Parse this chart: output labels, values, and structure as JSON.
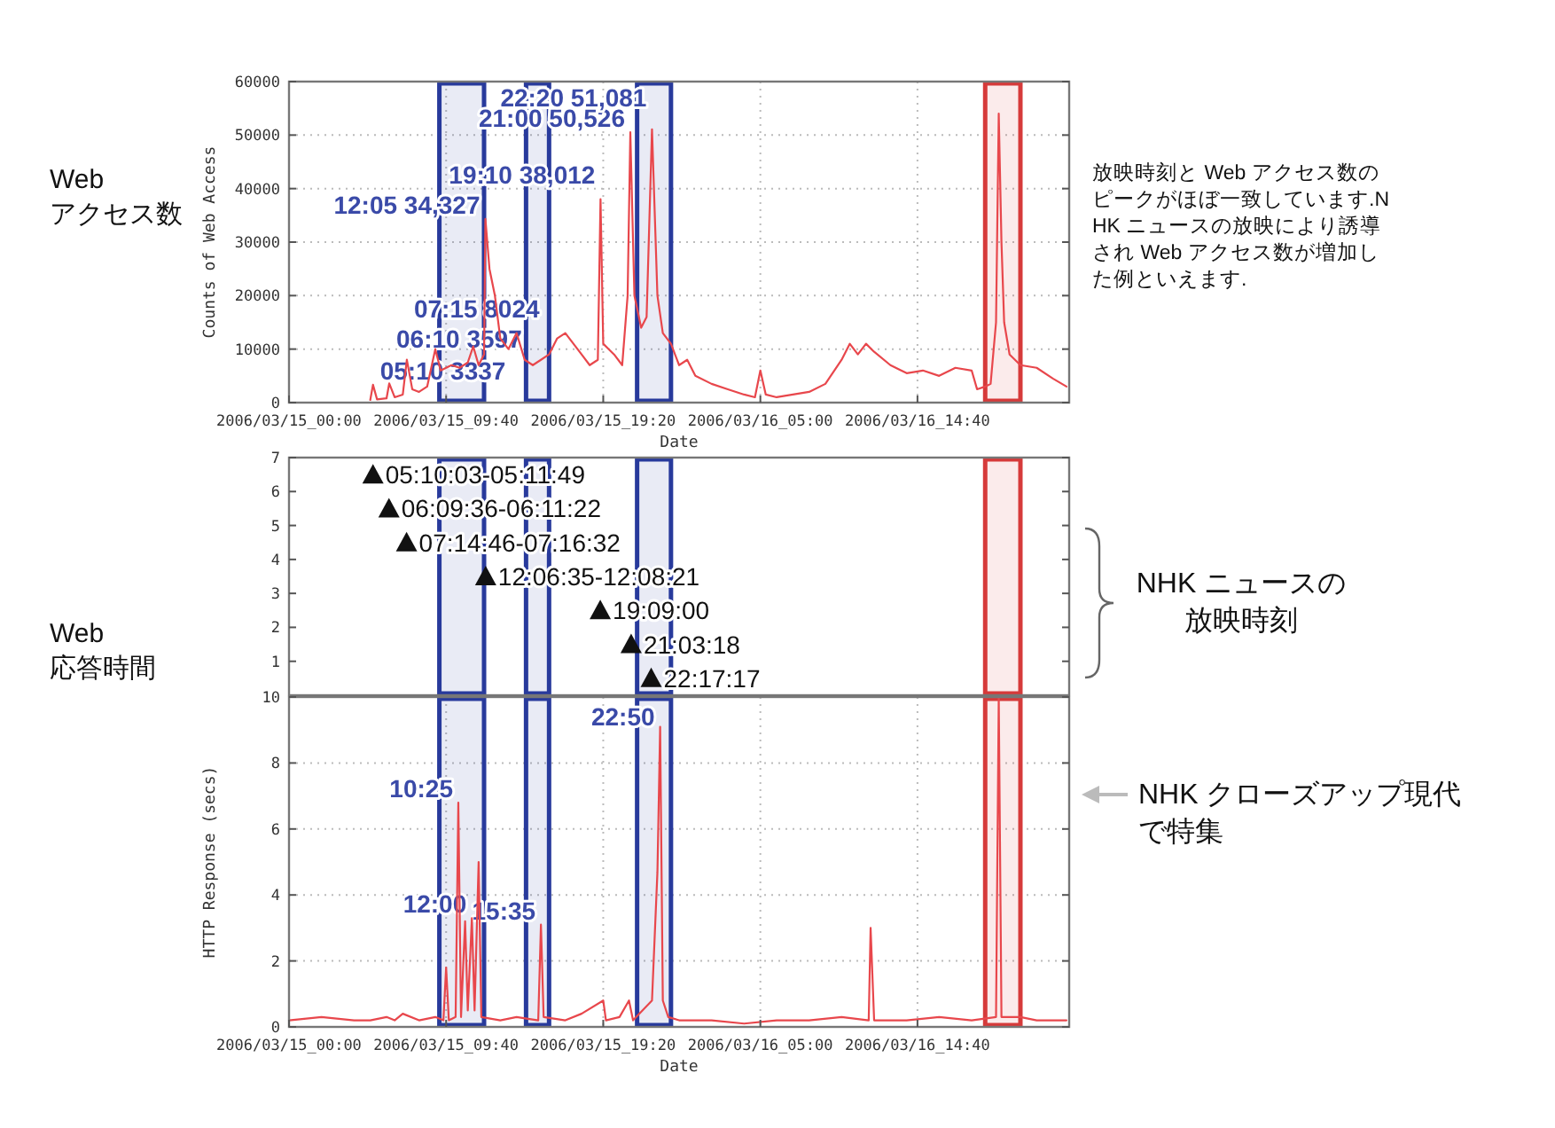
{
  "chart_data": [
    {
      "type": "line",
      "xlabel": "Date",
      "ylabel": "Counts of Web Access",
      "xlim": [
        "2006-03-15T00:00",
        "2006-03-17T00:00"
      ],
      "ylim": [
        0,
        60000
      ],
      "xticks": [
        {
          "value": "2006-03-15T00:00",
          "label": "2006/03/15_00:00"
        },
        {
          "value": "2006-03-15T09:40",
          "label": "2006/03/15_09:40"
        },
        {
          "value": "2006-03-15T19:20",
          "label": "2006/03/15_19:20"
        },
        {
          "value": "2006-03-16T05:00",
          "label": "2006/03/16_05:00"
        },
        {
          "value": "2006-03-16T14:40",
          "label": "2006/03/16_14:40"
        }
      ],
      "yticks": [
        0,
        10000,
        20000,
        30000,
        40000,
        50000,
        60000
      ],
      "grid": true,
      "series": [
        {
          "color": "#e8474c",
          "x": [
            "2006-03-15T05:00",
            "2006-03-15T05:10",
            "2006-03-15T05:25",
            "2006-03-15T06:00",
            "2006-03-15T06:10",
            "2006-03-15T06:30",
            "2006-03-15T07:00",
            "2006-03-15T07:15",
            "2006-03-15T07:35",
            "2006-03-15T08:00",
            "2006-03-15T08:30",
            "2006-03-15T09:00",
            "2006-03-15T09:20",
            "2006-03-15T10:00",
            "2006-03-15T10:30",
            "2006-03-15T11:00",
            "2006-03-15T11:20",
            "2006-03-15T11:40",
            "2006-03-15T12:00",
            "2006-03-15T12:05",
            "2006-03-15T12:20",
            "2006-03-15T12:40",
            "2006-03-15T13:00",
            "2006-03-15T13:30",
            "2006-03-15T14:00",
            "2006-03-15T14:30",
            "2006-03-15T15:00",
            "2006-03-15T15:30",
            "2006-03-15T16:00",
            "2006-03-15T16:30",
            "2006-03-15T17:00",
            "2006-03-15T17:30",
            "2006-03-15T18:00",
            "2006-03-15T18:30",
            "2006-03-15T19:00",
            "2006-03-15T19:10",
            "2006-03-15T19:20",
            "2006-03-15T19:40",
            "2006-03-15T20:00",
            "2006-03-15T20:30",
            "2006-03-15T20:50",
            "2006-03-15T21:00",
            "2006-03-15T21:15",
            "2006-03-15T21:40",
            "2006-03-15T22:00",
            "2006-03-15T22:20",
            "2006-03-15T22:40",
            "2006-03-15T23:00",
            "2006-03-15T23:30",
            "2006-03-16T00:00",
            "2006-03-16T00:30",
            "2006-03-16T01:00",
            "2006-03-16T02:00",
            "2006-03-16T03:00",
            "2006-03-16T04:00",
            "2006-03-16T04:40",
            "2006-03-16T05:00",
            "2006-03-16T05:20",
            "2006-03-16T06:00",
            "2006-03-16T07:00",
            "2006-03-16T08:00",
            "2006-03-16T09:00",
            "2006-03-16T10:00",
            "2006-03-16T10:30",
            "2006-03-16T11:00",
            "2006-03-16T11:30",
            "2006-03-16T12:00",
            "2006-03-16T13:00",
            "2006-03-16T14:00",
            "2006-03-16T15:00",
            "2006-03-16T16:00",
            "2006-03-16T17:00",
            "2006-03-16T18:00",
            "2006-03-16T18:20",
            "2006-03-16T18:50",
            "2006-03-16T19:10",
            "2006-03-16T19:30",
            "2006-03-16T19:40",
            "2006-03-16T19:50",
            "2006-03-16T20:00",
            "2006-03-16T20:20",
            "2006-03-16T21:00",
            "2006-03-16T22:00",
            "2006-03-16T23:00",
            "2006-03-16T23:50"
          ],
          "values": [
            500,
            3337,
            600,
            800,
            3597,
            1000,
            1500,
            8024,
            2500,
            2000,
            3000,
            10000,
            6000,
            7000,
            6500,
            7500,
            10500,
            7000,
            9000,
            34327,
            25000,
            20000,
            12000,
            10000,
            13000,
            8000,
            7000,
            8000,
            9000,
            12000,
            13000,
            11000,
            9000,
            7000,
            8000,
            38012,
            11000,
            10000,
            9000,
            7000,
            20000,
            50526,
            20000,
            14000,
            16000,
            51081,
            20000,
            13000,
            11000,
            7000,
            8000,
            5000,
            3500,
            2500,
            1500,
            1000,
            6000,
            1500,
            1000,
            1500,
            2000,
            3500,
            8000,
            11000,
            9000,
            11000,
            9500,
            7000,
            5500,
            6000,
            5000,
            6500,
            6000,
            2500,
            3000,
            3500,
            15000,
            54000,
            30000,
            15000,
            9000,
            7000,
            6500,
            4500,
            3000
          ]
        }
      ],
      "bands": [
        {
          "axis": "x",
          "from": "2006-03-15T09:15",
          "to": "2006-03-15T12:00",
          "color": "#283a9c"
        },
        {
          "axis": "x",
          "from": "2006-03-15T14:35",
          "to": "2006-03-15T16:00",
          "color": "#283a9c"
        },
        {
          "axis": "x",
          "from": "2006-03-15T21:25",
          "to": "2006-03-15T23:30",
          "color": "#283a9c"
        },
        {
          "axis": "x",
          "from": "2006-03-16T18:50",
          "to": "2006-03-16T21:00",
          "color": "#d63a3a"
        }
      ],
      "annotations": [
        {
          "text": "05:10 3337",
          "x": "2006-03-15T05:10",
          "y": 3337
        },
        {
          "text": "06:10 3597",
          "x": "2006-03-15T06:10",
          "y": 3597
        },
        {
          "text": "07:15 8024",
          "x": "2006-03-15T07:15",
          "y": 8024
        },
        {
          "text": "12:05 34,327",
          "x": "2006-03-15T12:05",
          "y": 34327
        },
        {
          "text": "19:10 38,012",
          "x": "2006-03-15T19:10",
          "y": 38012
        },
        {
          "text": "21:00 50,526",
          "x": "2006-03-15T21:00",
          "y": 50526
        },
        {
          "text": "22:20 51,081",
          "x": "2006-03-15T22:20",
          "y": 51081
        },
        "Web\nアクセス数",
        "放映時刻と Web アクセス数のピークがほぼ一致しています.NHK ニュースの放映により誘導され Web アクセス数が増加した例といえます."
      ]
    },
    {
      "type": "scatter",
      "xlim": [
        "2006-03-15T00:00",
        "2006-03-17T00:00"
      ],
      "ylim": [
        0,
        7
      ],
      "yticks": [
        1,
        2,
        3,
        4,
        5,
        6,
        7
      ],
      "tick_labels": "y",
      "marker": "triangle",
      "series": [
        {
          "color": "#111111",
          "x": [
            "2006-03-15T05:10",
            "2006-03-15T06:09",
            "2006-03-15T07:14",
            "2006-03-15T12:06",
            "2006-03-15T19:09",
            "2006-03-15T21:03",
            "2006-03-15T22:17"
          ],
          "values": [
            6.5,
            5.5,
            4.5,
            3.5,
            2.5,
            1.5,
            0.5
          ]
        }
      ],
      "bands": [
        {
          "axis": "x",
          "from": "2006-03-15T09:15",
          "to": "2006-03-15T12:00",
          "color": "#283a9c"
        },
        {
          "axis": "x",
          "from": "2006-03-15T14:35",
          "to": "2006-03-15T16:00",
          "color": "#283a9c"
        },
        {
          "axis": "x",
          "from": "2006-03-15T21:25",
          "to": "2006-03-15T23:30",
          "color": "#283a9c"
        },
        {
          "axis": "x",
          "from": "2006-03-16T18:50",
          "to": "2006-03-16T21:00",
          "color": "#d63a3a"
        }
      ],
      "annotations": [
        {
          "text": "05:10:03-05:11:49",
          "x": "2006-03-15T05:10",
          "y": 6.5
        },
        {
          "text": "06:09:36-06:11:22",
          "x": "2006-03-15T06:09",
          "y": 5.5
        },
        {
          "text": "07:14:46-07:16:32",
          "x": "2006-03-15T07:14",
          "y": 4.5
        },
        {
          "text": "12:06:35-12:08:21",
          "x": "2006-03-15T12:06",
          "y": 3.5
        },
        {
          "text": "19:09:00",
          "x": "2006-03-15T19:09",
          "y": 2.5
        },
        {
          "text": "21:03:18",
          "x": "2006-03-15T21:03",
          "y": 1.5
        },
        {
          "text": "22:17:17",
          "x": "2006-03-15T22:17",
          "y": 0.5
        },
        "Web\n応答時間",
        "NHK ニュースの放映時刻"
      ]
    },
    {
      "type": "line",
      "xlabel": "Date",
      "ylabel": "HTTP Response (secs)",
      "xlim": [
        "2006-03-15T00:00",
        "2006-03-17T00:00"
      ],
      "ylim": [
        0,
        10
      ],
      "xticks": [
        {
          "value": "2006-03-15T00:00",
          "label": "2006/03/15_00:00"
        },
        {
          "value": "2006-03-15T09:40",
          "label": "2006/03/15_09:40"
        },
        {
          "value": "2006-03-15T19:20",
          "label": "2006/03/15_19:20"
        },
        {
          "value": "2006-03-16T05:00",
          "label": "2006/03/16_05:00"
        },
        {
          "value": "2006-03-16T14:40",
          "label": "2006/03/16_14:40"
        }
      ],
      "yticks": [
        0,
        2,
        4,
        6,
        8,
        10
      ],
      "grid": true,
      "series": [
        {
          "color": "#e8474c",
          "x": [
            "2006-03-15T00:00",
            "2006-03-15T02:00",
            "2006-03-15T04:00",
            "2006-03-15T05:00",
            "2006-03-15T06:00",
            "2006-03-15T06:30",
            "2006-03-15T07:00",
            "2006-03-15T08:00",
            "2006-03-15T09:00",
            "2006-03-15T09:30",
            "2006-03-15T09:40",
            "2006-03-15T09:50",
            "2006-03-15T10:15",
            "2006-03-15T10:25",
            "2006-03-15T10:35",
            "2006-03-15T10:50",
            "2006-03-15T11:00",
            "2006-03-15T11:15",
            "2006-03-15T11:25",
            "2006-03-15T11:40",
            "2006-03-15T11:50",
            "2006-03-15T13:00",
            "2006-03-15T14:00",
            "2006-03-15T15:20",
            "2006-03-15T15:30",
            "2006-03-15T15:40",
            "2006-03-15T17:00",
            "2006-03-15T18:00",
            "2006-03-15T19:20",
            "2006-03-15T19:30",
            "2006-03-15T20:20",
            "2006-03-15T20:55",
            "2006-03-15T21:10",
            "2006-03-15T22:20",
            "2006-03-15T22:40",
            "2006-03-15T22:50",
            "2006-03-15T23:00",
            "2006-03-15T23:20",
            "2006-03-16T00:00",
            "2006-03-16T02:00",
            "2006-03-16T04:00",
            "2006-03-16T06:00",
            "2006-03-16T08:00",
            "2006-03-16T10:00",
            "2006-03-16T11:40",
            "2006-03-16T11:47",
            "2006-03-16T12:00",
            "2006-03-16T14:00",
            "2006-03-16T16:00",
            "2006-03-16T18:00",
            "2006-03-16T19:30",
            "2006-03-16T19:40",
            "2006-03-16T19:50",
            "2006-03-16T21:00",
            "2006-03-16T22:00",
            "2006-03-16T23:50"
          ],
          "values": [
            0.2,
            0.3,
            0.2,
            0.2,
            0.3,
            0.2,
            0.4,
            0.2,
            0.3,
            0.2,
            1.8,
            0.2,
            0.3,
            6.8,
            0.3,
            3.2,
            0.5,
            3.3,
            0.5,
            5.0,
            0.3,
            0.2,
            0.3,
            0.2,
            3.1,
            0.3,
            0.2,
            0.4,
            0.8,
            0.2,
            0.3,
            0.8,
            0.2,
            0.8,
            4.7,
            9.1,
            0.8,
            0.3,
            0.2,
            0.2,
            0.1,
            0.2,
            0.2,
            0.3,
            0.2,
            3.0,
            0.2,
            0.2,
            0.3,
            0.2,
            0.3,
            10,
            0.3,
            0.3,
            0.2,
            0.2
          ]
        }
      ],
      "bands": [
        {
          "axis": "x",
          "from": "2006-03-15T09:15",
          "to": "2006-03-15T12:00",
          "color": "#283a9c"
        },
        {
          "axis": "x",
          "from": "2006-03-15T14:35",
          "to": "2006-03-15T16:00",
          "color": "#283a9c"
        },
        {
          "axis": "x",
          "from": "2006-03-15T21:25",
          "to": "2006-03-15T23:30",
          "color": "#283a9c"
        },
        {
          "axis": "x",
          "from": "2006-03-16T18:50",
          "to": "2006-03-16T21:00",
          "color": "#d63a3a"
        }
      ],
      "annotations": [
        {
          "text": "10:25",
          "x": "2006-03-15T10:25",
          "y": 6.8
        },
        {
          "text": "12:00",
          "x": "2006-03-15T11:15",
          "y": 3.3
        },
        {
          "text": "15:35",
          "x": "2006-03-15T15:30",
          "y": 3.1
        },
        {
          "text": "22:50",
          "x": "2006-03-15T22:50",
          "y": 9.1
        },
        "NHK クローズアップ現代で特集"
      ]
    }
  ]
}
